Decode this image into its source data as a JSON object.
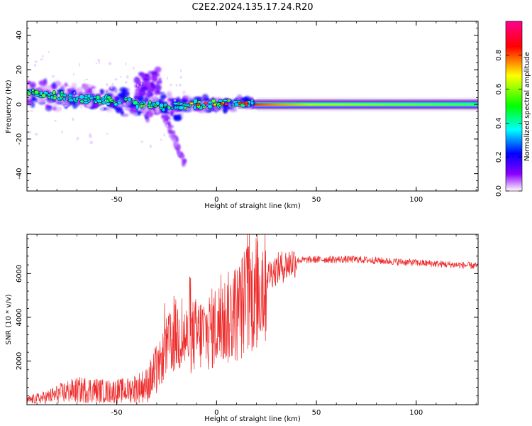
{
  "title": "C2E2.2024.135.17.24.R20",
  "chart_data": [
    {
      "type": "heatmap",
      "xlabel": "Height of straight line (km)",
      "ylabel": "Frequency (Hz)",
      "xlim": [
        -95,
        131
      ],
      "ylim": [
        -50,
        48
      ],
      "xticks": [
        -50,
        0,
        50,
        100
      ],
      "yticks": [
        -40,
        -20,
        0,
        20,
        40
      ],
      "grid": false,
      "description_series": [
        {
          "name": "main_band_x",
          "values": [
            -95,
            -80,
            -65,
            -50,
            -35,
            -25,
            -15,
            0,
            10,
            20,
            40,
            60,
            80,
            100,
            131
          ]
        },
        {
          "name": "main_band_freq",
          "values": [
            7,
            5,
            3,
            2,
            0,
            -2,
            0,
            0,
            1,
            0,
            0,
            0,
            0,
            0,
            0
          ]
        }
      ],
      "colorbar": {
        "label": "Normalized spectral amplitude",
        "range": [
          0,
          1
        ],
        "ticks": [
          0.0,
          0.2,
          0.4,
          0.6,
          0.8
        ],
        "colors": [
          "#ffffff",
          "#8a00ff",
          "#0000ff",
          "#00ffff",
          "#00ff00",
          "#ffff00",
          "#ff0000",
          "#ff0080"
        ]
      }
    },
    {
      "type": "line",
      "xlabel": "Height of straight line (km)",
      "ylabel": "SNR (10 * v/v)",
      "xlim": [
        -95,
        131
      ],
      "ylim": [
        0,
        7800
      ],
      "xticks": [
        -50,
        0,
        50,
        100
      ],
      "yticks": [
        2000,
        4000,
        6000
      ],
      "color": "#ee2a2a",
      "series": [
        {
          "x": [
            -95,
            -85,
            -75,
            -65,
            -55,
            -45,
            -35,
            -30,
            -25,
            -20,
            -15,
            -10,
            -5,
            0,
            5,
            10,
            15,
            20,
            25,
            30,
            35,
            40,
            50,
            60,
            70,
            80,
            90,
            100,
            110,
            120,
            131
          ],
          "values": [
            200,
            350,
            600,
            700,
            600,
            650,
            900,
            1500,
            2600,
            3200,
            3000,
            3200,
            3300,
            3600,
            3900,
            4200,
            4800,
            5300,
            5900,
            6200,
            6400,
            6600,
            6650,
            6650,
            6650,
            6600,
            6550,
            6500,
            6450,
            6400,
            6350
          ]
        }
      ]
    }
  ]
}
